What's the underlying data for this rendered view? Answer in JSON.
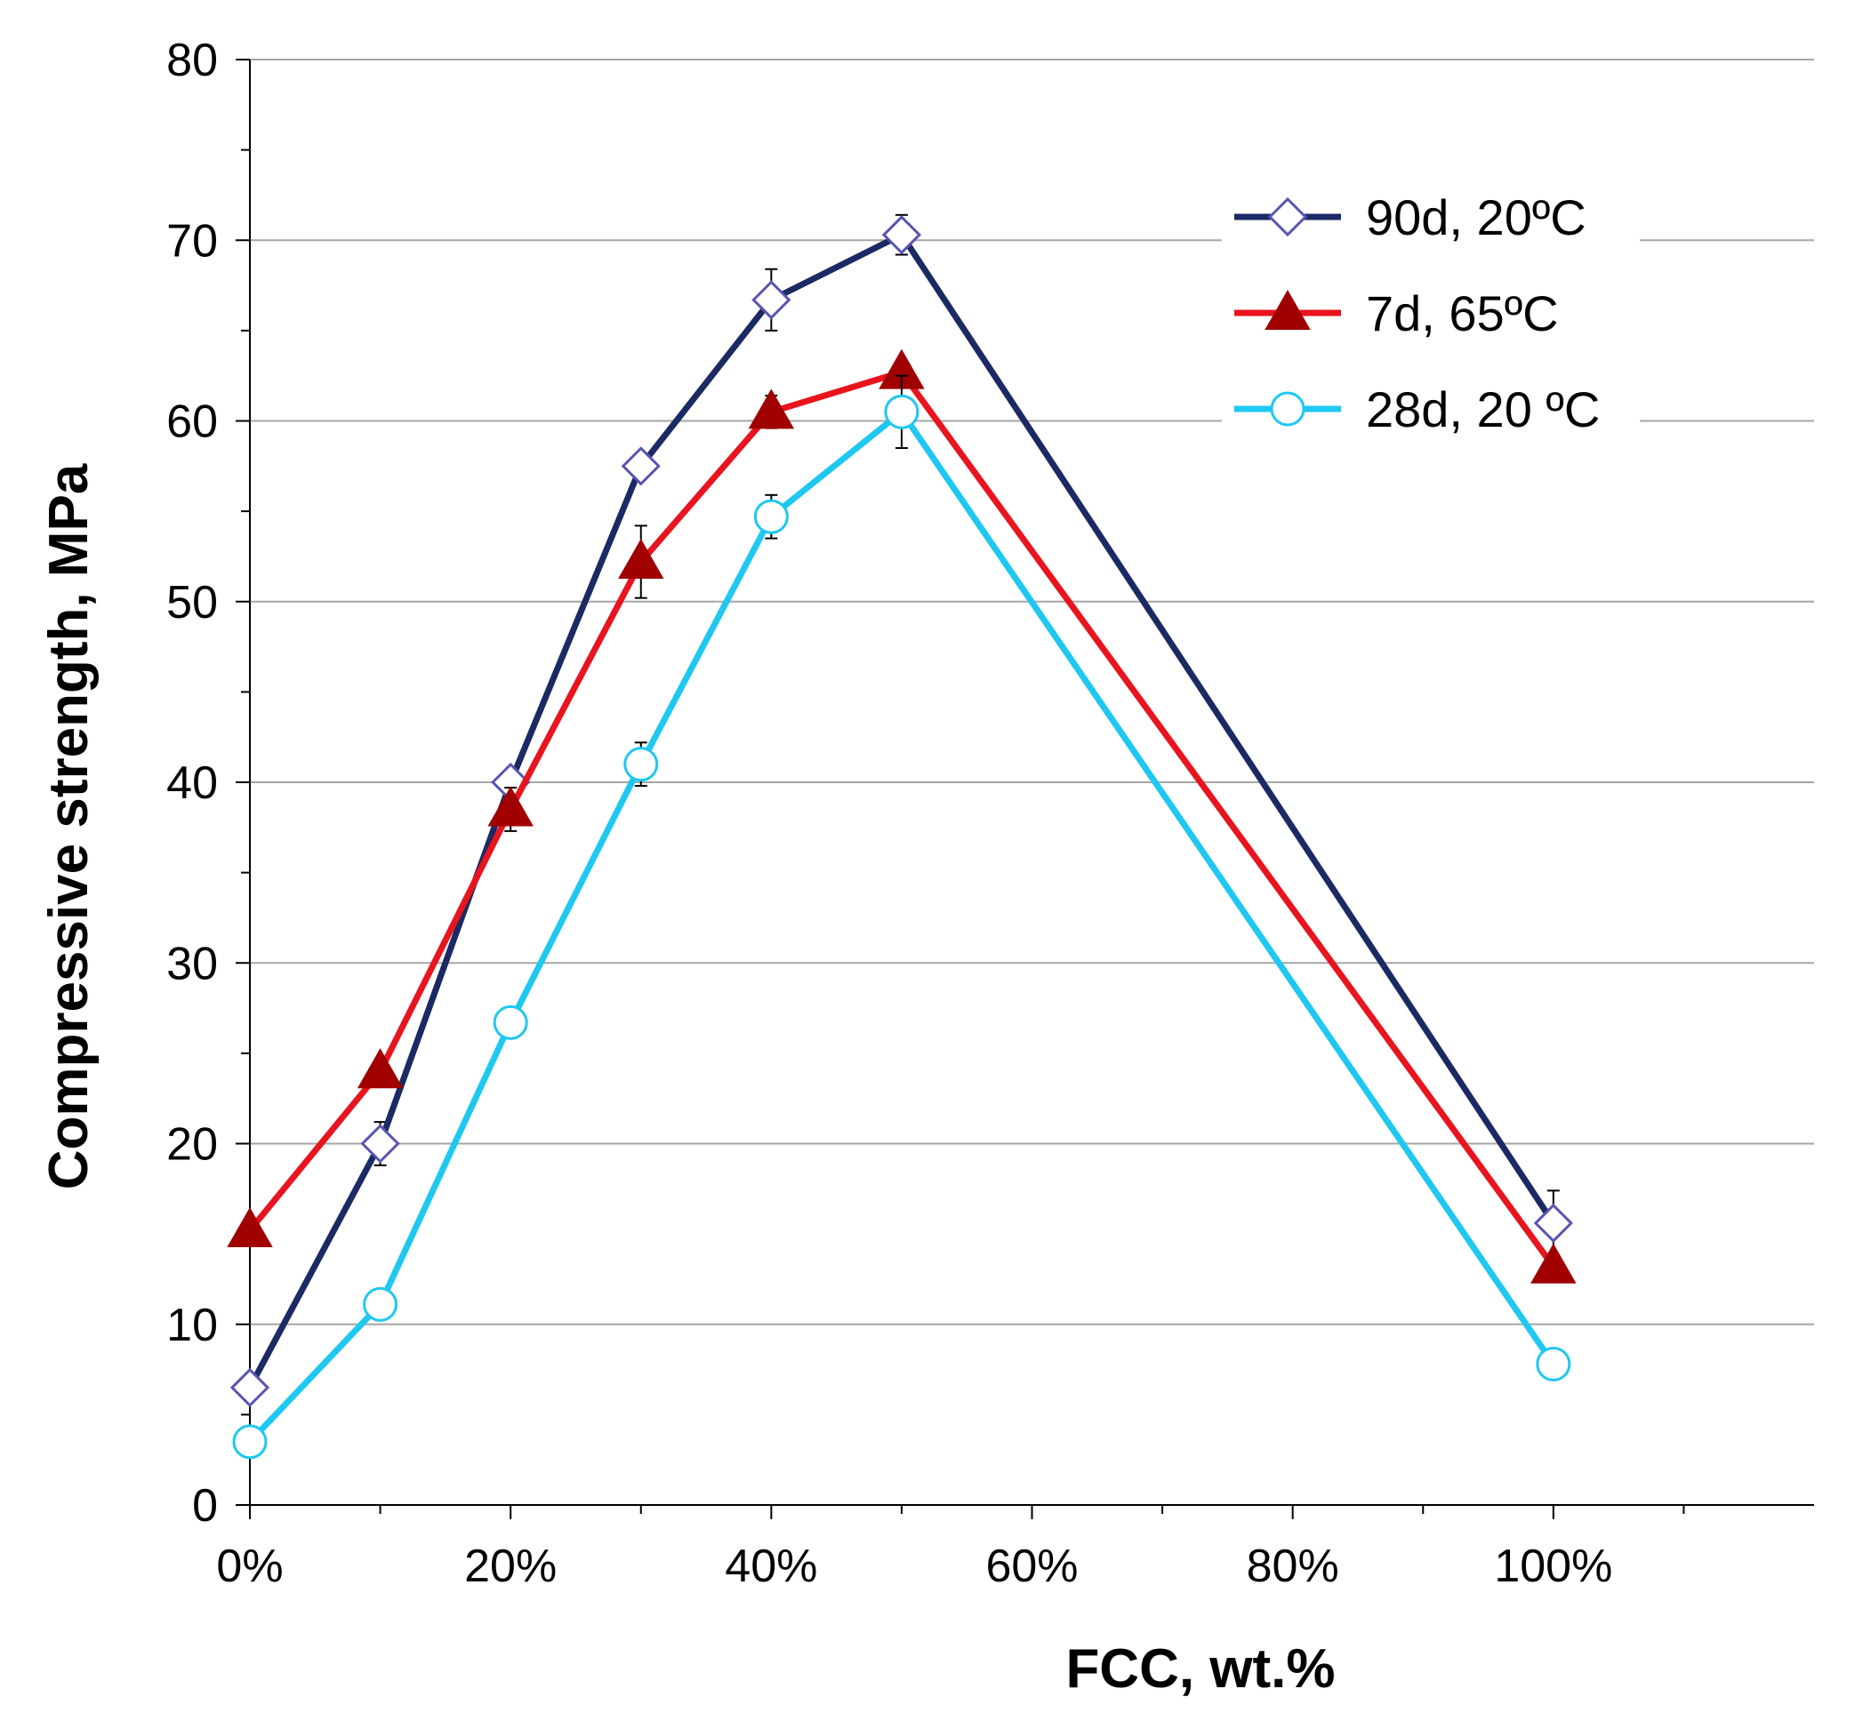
{
  "chart_data": {
    "type": "line",
    "title": "",
    "xlabel": "FCC, wt.%",
    "ylabel": "Compressive strength, MPa",
    "xlim": [
      0,
      120
    ],
    "ylim": [
      0,
      80
    ],
    "x_ticks": [
      0,
      20,
      40,
      60,
      80,
      100
    ],
    "x_tick_labels": [
      "0%",
      "20%",
      "40%",
      "60%",
      "80%",
      "100%"
    ],
    "y_ticks": [
      0,
      10,
      20,
      30,
      40,
      50,
      60,
      70,
      80
    ],
    "y_tick_labels": [
      "0",
      "10",
      "20",
      "30",
      "40",
      "50",
      "60",
      "70",
      "80"
    ],
    "grid": "horizontal",
    "legend_position": "top-right",
    "series": [
      {
        "name": "90d, 20ºC",
        "color": "#1b2a63",
        "marker": "diamond-open",
        "x": [
          0,
          10,
          20,
          30,
          40,
          50,
          100
        ],
        "y": [
          6.5,
          20,
          40,
          57.5,
          66.7,
          70.3,
          15.6
        ],
        "error": [
          0,
          1.2,
          0,
          0,
          1.7,
          1.1,
          1.8
        ]
      },
      {
        "name": "7d, 65ºC",
        "color": "#e8141e",
        "marker": "triangle-filled",
        "marker_color": "#a00000",
        "x": [
          0,
          10,
          20,
          30,
          40,
          50,
          100
        ],
        "y": [
          15.2,
          24,
          38.5,
          52.2,
          60.5,
          62.7,
          13.2
        ],
        "error": [
          0,
          0,
          1.2,
          2.0,
          0.9,
          0,
          0
        ]
      },
      {
        "name": "28d, 20 ºC",
        "color": "#1ec8f0",
        "marker": "circle-open",
        "x": [
          0,
          10,
          20,
          30,
          40,
          50,
          100
        ],
        "y": [
          3.5,
          11.1,
          26.7,
          41,
          54.7,
          60.5,
          7.8
        ],
        "error": [
          0,
          0,
          0,
          1.2,
          1.2,
          2.0,
          0
        ]
      }
    ]
  }
}
